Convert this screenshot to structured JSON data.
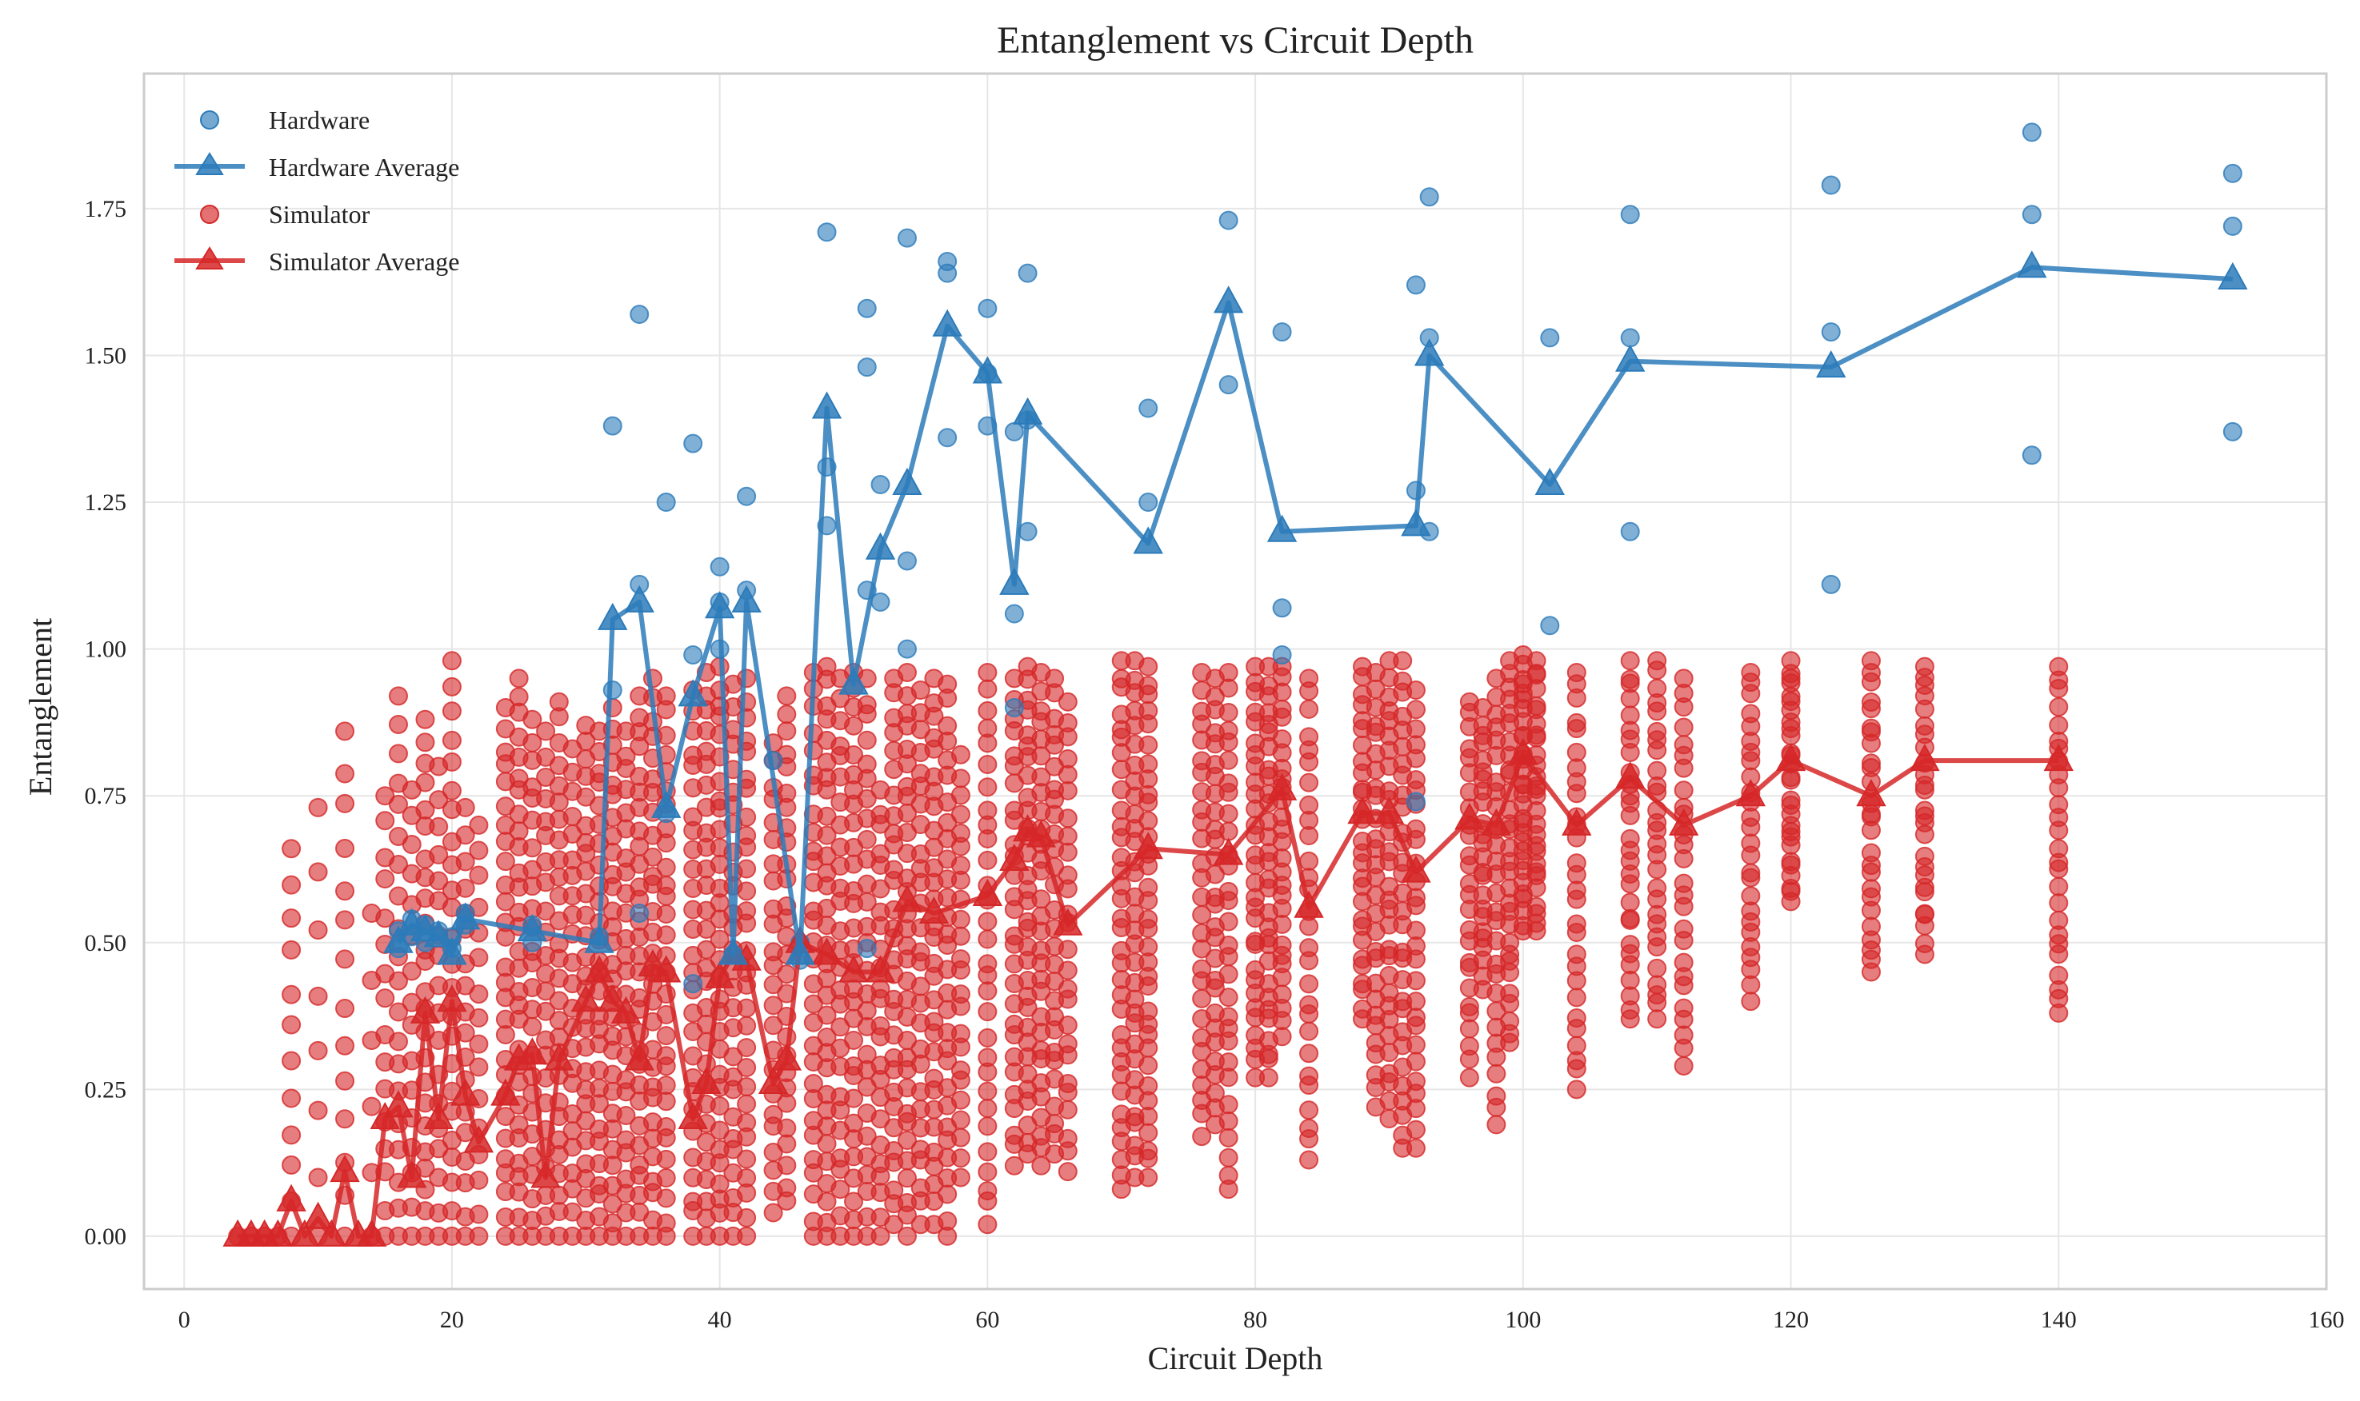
{
  "chart_data": {
    "type": "scatter",
    "title": "Entanglement vs Circuit Depth",
    "xlabel": "Circuit Depth",
    "ylabel": "Entanglement",
    "xlim": [
      -3,
      160
    ],
    "ylim": [
      -0.09,
      1.98
    ],
    "xticks": [
      "0",
      "20",
      "40",
      "60",
      "80",
      "100",
      "120",
      "140",
      "160"
    ],
    "yticks": [
      "0.00",
      "0.25",
      "0.50",
      "0.75",
      "1.00",
      "1.25",
      "1.50",
      "1.75"
    ],
    "grid": true,
    "legend_position": "top-left",
    "colors": {
      "hardware": "#2b7bba",
      "simulator": "#d62728",
      "frame": "#cccccc",
      "grid": "#e6e6e6"
    },
    "legend": [
      "Hardware",
      "Hardware Average",
      "Simulator",
      "Simulator Average"
    ],
    "series": [
      {
        "name": "Hardware",
        "kind": "scatter",
        "points": [
          [
            16,
            0.49
          ],
          [
            16,
            0.52
          ],
          [
            17,
            0.51
          ],
          [
            17,
            0.54
          ],
          [
            18,
            0.5
          ],
          [
            18,
            0.53
          ],
          [
            19,
            0.52
          ],
          [
            20,
            0.49
          ],
          [
            20,
            0.51
          ],
          [
            21,
            0.55
          ],
          [
            21,
            0.53
          ],
          [
            26,
            0.53
          ],
          [
            26,
            0.5
          ],
          [
            31,
            0.51
          ],
          [
            32,
            1.38
          ],
          [
            32,
            0.93
          ],
          [
            34,
            1.57
          ],
          [
            34,
            1.11
          ],
          [
            34,
            0.55
          ],
          [
            36,
            1.25
          ],
          [
            36,
            0.72
          ],
          [
            38,
            1.35
          ],
          [
            38,
            0.99
          ],
          [
            38,
            0.43
          ],
          [
            40,
            1.14
          ],
          [
            40,
            1.08
          ],
          [
            40,
            1.0
          ],
          [
            41,
            0.48
          ],
          [
            42,
            1.26
          ],
          [
            42,
            1.1
          ],
          [
            44,
            0.81
          ],
          [
            46,
            0.47
          ],
          [
            46,
            0.5
          ],
          [
            48,
            1.71
          ],
          [
            48,
            1.31
          ],
          [
            48,
            1.21
          ],
          [
            51,
            1.58
          ],
          [
            51,
            1.48
          ],
          [
            51,
            1.1
          ],
          [
            51,
            0.49
          ],
          [
            52,
            1.28
          ],
          [
            52,
            1.08
          ],
          [
            54,
            1.7
          ],
          [
            54,
            1.15
          ],
          [
            54,
            1.0
          ],
          [
            57,
            1.66
          ],
          [
            57,
            1.64
          ],
          [
            57,
            1.36
          ],
          [
            60,
            1.58
          ],
          [
            60,
            1.38
          ],
          [
            60,
            1.47
          ],
          [
            62,
            1.37
          ],
          [
            62,
            1.06
          ],
          [
            62,
            0.9
          ],
          [
            63,
            1.64
          ],
          [
            63,
            1.39
          ],
          [
            63,
            1.2
          ],
          [
            72,
            1.41
          ],
          [
            72,
            1.25
          ],
          [
            78,
            1.73
          ],
          [
            78,
            1.45
          ],
          [
            82,
            1.54
          ],
          [
            82,
            1.07
          ],
          [
            82,
            0.99
          ],
          [
            92,
            1.62
          ],
          [
            92,
            1.27
          ],
          [
            92,
            0.74
          ],
          [
            93,
            1.77
          ],
          [
            93,
            1.53
          ],
          [
            93,
            1.2
          ],
          [
            102,
            1.53
          ],
          [
            102,
            1.04
          ],
          [
            108,
            1.74
          ],
          [
            108,
            1.53
          ],
          [
            108,
            1.2
          ],
          [
            123,
            1.79
          ],
          [
            123,
            1.54
          ],
          [
            123,
            1.11
          ],
          [
            138,
            1.88
          ],
          [
            138,
            1.74
          ],
          [
            138,
            1.33
          ],
          [
            153,
            1.81
          ],
          [
            153,
            1.72
          ],
          [
            153,
            1.37
          ]
        ]
      },
      {
        "name": "Hardware Average",
        "kind": "line",
        "points": [
          [
            16,
            0.5
          ],
          [
            17,
            0.53
          ],
          [
            18,
            0.52
          ],
          [
            19,
            0.51
          ],
          [
            20,
            0.48
          ],
          [
            21,
            0.54
          ],
          [
            26,
            0.52
          ],
          [
            31,
            0.5
          ],
          [
            32,
            1.05
          ],
          [
            34,
            1.08
          ],
          [
            36,
            0.73
          ],
          [
            38,
            0.92
          ],
          [
            40,
            1.07
          ],
          [
            41,
            0.48
          ],
          [
            42,
            1.08
          ],
          [
            46,
            0.48
          ],
          [
            48,
            1.41
          ],
          [
            50,
            0.94
          ],
          [
            52,
            1.17
          ],
          [
            54,
            1.28
          ],
          [
            57,
            1.55
          ],
          [
            60,
            1.47
          ],
          [
            62,
            1.11
          ],
          [
            63,
            1.4
          ],
          [
            72,
            1.18
          ],
          [
            78,
            1.59
          ],
          [
            82,
            1.2
          ],
          [
            92,
            1.21
          ],
          [
            93,
            1.5
          ],
          [
            102,
            1.28
          ],
          [
            108,
            1.49
          ],
          [
            123,
            1.48
          ],
          [
            138,
            1.65
          ],
          [
            153,
            1.63
          ]
        ]
      },
      {
        "name": "Simulator",
        "kind": "scatter-columns",
        "columns": [
          [
            4,
            0.0,
            0.0,
            1
          ],
          [
            5,
            0.0,
            0.0,
            1
          ],
          [
            6,
            0.0,
            0.0,
            1
          ],
          [
            7,
            0.0,
            0.0,
            1
          ],
          [
            8,
            0.0,
            0.66,
            12
          ],
          [
            10,
            0.0,
            0.73,
            8
          ],
          [
            12,
            0.0,
            0.86,
            14
          ],
          [
            14,
            0.0,
            0.55,
            6
          ],
          [
            15,
            0.0,
            0.75,
            16
          ],
          [
            16,
            0.0,
            0.92,
            20
          ],
          [
            17,
            0.0,
            0.76,
            16
          ],
          [
            18,
            0.0,
            0.88,
            24
          ],
          [
            19,
            0.0,
            0.8,
            18
          ],
          [
            20,
            0.0,
            0.98,
            24
          ],
          [
            21,
            0.0,
            0.73,
            18
          ],
          [
            22,
            0.0,
            0.7,
            16
          ],
          [
            24,
            0.0,
            0.9,
            28
          ],
          [
            25,
            0.0,
            0.95,
            30
          ],
          [
            26,
            0.0,
            0.88,
            26
          ],
          [
            27,
            0.0,
            0.86,
            24
          ],
          [
            28,
            0.0,
            0.91,
            28
          ],
          [
            29,
            0.0,
            0.83,
            24
          ],
          [
            30,
            0.0,
            0.87,
            28
          ],
          [
            31,
            0.0,
            0.86,
            28
          ],
          [
            32,
            0.0,
            0.9,
            30
          ],
          [
            33,
            0.0,
            0.86,
            26
          ],
          [
            34,
            0.0,
            0.92,
            30
          ],
          [
            35,
            0.0,
            0.95,
            30
          ],
          [
            36,
            0.0,
            0.92,
            30
          ],
          [
            38,
            0.0,
            0.93,
            28
          ],
          [
            39,
            0.0,
            0.96,
            30
          ],
          [
            40,
            0.0,
            0.97,
            32
          ],
          [
            41,
            0.0,
            0.94,
            28
          ],
          [
            42,
            0.0,
            0.95,
            30
          ],
          [
            44,
            0.04,
            0.84,
            24
          ],
          [
            45,
            0.06,
            0.92,
            28
          ],
          [
            47,
            0.0,
            0.96,
            30
          ],
          [
            48,
            0.0,
            0.97,
            32
          ],
          [
            49,
            0.0,
            0.95,
            28
          ],
          [
            50,
            0.0,
            0.96,
            30
          ],
          [
            51,
            0.0,
            0.95,
            28
          ],
          [
            52,
            0.0,
            0.76,
            24
          ],
          [
            53,
            0.02,
            0.95,
            30
          ],
          [
            54,
            0.0,
            0.96,
            32
          ],
          [
            55,
            0.02,
            0.93,
            28
          ],
          [
            56,
            0.02,
            0.95,
            30
          ],
          [
            57,
            0.0,
            0.94,
            30
          ],
          [
            58,
            0.1,
            0.82,
            24
          ],
          [
            60,
            0.02,
            0.96,
            30
          ],
          [
            62,
            0.12,
            0.95,
            28
          ],
          [
            63,
            0.14,
            0.97,
            32
          ],
          [
            64,
            0.12,
            0.96,
            30
          ],
          [
            65,
            0.14,
            0.95,
            28
          ],
          [
            66,
            0.11,
            0.91,
            26
          ],
          [
            70,
            0.08,
            0.98,
            34
          ],
          [
            71,
            0.1,
            0.98,
            32
          ],
          [
            72,
            0.1,
            0.97,
            34
          ],
          [
            76,
            0.17,
            0.96,
            28
          ],
          [
            77,
            0.19,
            0.95,
            28
          ],
          [
            78,
            0.08,
            0.96,
            30
          ],
          [
            80,
            0.27,
            0.97,
            30
          ],
          [
            81,
            0.27,
            0.97,
            30
          ],
          [
            82,
            0.34,
            0.97,
            28
          ],
          [
            84,
            0.13,
            0.95,
            28
          ],
          [
            88,
            0.37,
            0.97,
            28
          ],
          [
            89,
            0.22,
            0.96,
            28
          ],
          [
            90,
            0.2,
            0.98,
            30
          ],
          [
            91,
            0.15,
            0.98,
            30
          ],
          [
            92,
            0.15,
            0.93,
            28
          ],
          [
            96,
            0.27,
            0.91,
            26
          ],
          [
            97,
            0.42,
            0.9,
            24
          ],
          [
            98,
            0.19,
            0.95,
            28
          ],
          [
            99,
            0.33,
            0.98,
            30
          ],
          [
            100,
            0.52,
            0.99,
            30
          ],
          [
            101,
            0.52,
            0.98,
            28
          ],
          [
            104,
            0.25,
            0.96,
            28
          ],
          [
            108,
            0.37,
            0.98,
            28
          ],
          [
            110,
            0.37,
            0.98,
            28
          ],
          [
            112,
            0.29,
            0.95,
            26
          ],
          [
            117,
            0.4,
            0.96,
            26
          ],
          [
            120,
            0.57,
            0.98,
            28
          ],
          [
            126,
            0.45,
            0.98,
            26
          ],
          [
            130,
            0.48,
            0.97,
            26
          ],
          [
            140,
            0.38,
            0.97,
            26
          ]
        ]
      },
      {
        "name": "Simulator Average",
        "kind": "line",
        "points": [
          [
            4,
            0.0
          ],
          [
            5,
            0.0
          ],
          [
            6,
            0.0
          ],
          [
            7,
            0.0
          ],
          [
            8,
            0.06
          ],
          [
            9,
            0.0
          ],
          [
            10,
            0.03
          ],
          [
            11,
            0.0
          ],
          [
            12,
            0.11
          ],
          [
            13,
            0.0
          ],
          [
            14,
            0.0
          ],
          [
            15,
            0.2
          ],
          [
            16,
            0.22
          ],
          [
            17,
            0.1
          ],
          [
            18,
            0.38
          ],
          [
            19,
            0.2
          ],
          [
            20,
            0.4
          ],
          [
            21,
            0.24
          ],
          [
            22,
            0.16
          ],
          [
            24,
            0.24
          ],
          [
            25,
            0.3
          ],
          [
            26,
            0.31
          ],
          [
            27,
            0.1
          ],
          [
            28,
            0.3
          ],
          [
            30,
            0.4
          ],
          [
            31,
            0.45
          ],
          [
            32,
            0.4
          ],
          [
            33,
            0.38
          ],
          [
            34,
            0.3
          ],
          [
            35,
            0.46
          ],
          [
            36,
            0.45
          ],
          [
            38,
            0.2
          ],
          [
            39,
            0.26
          ],
          [
            40,
            0.44
          ],
          [
            41,
            0.48
          ],
          [
            42,
            0.47
          ],
          [
            44,
            0.26
          ],
          [
            45,
            0.3
          ],
          [
            46,
            0.5
          ],
          [
            48,
            0.48
          ],
          [
            50,
            0.45
          ],
          [
            52,
            0.45
          ],
          [
            54,
            0.57
          ],
          [
            56,
            0.55
          ],
          [
            60,
            0.58
          ],
          [
            62,
            0.64
          ],
          [
            63,
            0.69
          ],
          [
            64,
            0.68
          ],
          [
            66,
            0.53
          ],
          [
            72,
            0.66
          ],
          [
            78,
            0.65
          ],
          [
            82,
            0.76
          ],
          [
            84,
            0.56
          ],
          [
            88,
            0.72
          ],
          [
            90,
            0.72
          ],
          [
            92,
            0.62
          ],
          [
            96,
            0.71
          ],
          [
            98,
            0.7
          ],
          [
            100,
            0.82
          ],
          [
            104,
            0.7
          ],
          [
            108,
            0.78
          ],
          [
            112,
            0.7
          ],
          [
            117,
            0.75
          ],
          [
            120,
            0.81
          ],
          [
            126,
            0.75
          ],
          [
            130,
            0.81
          ],
          [
            140,
            0.81
          ]
        ]
      }
    ]
  }
}
